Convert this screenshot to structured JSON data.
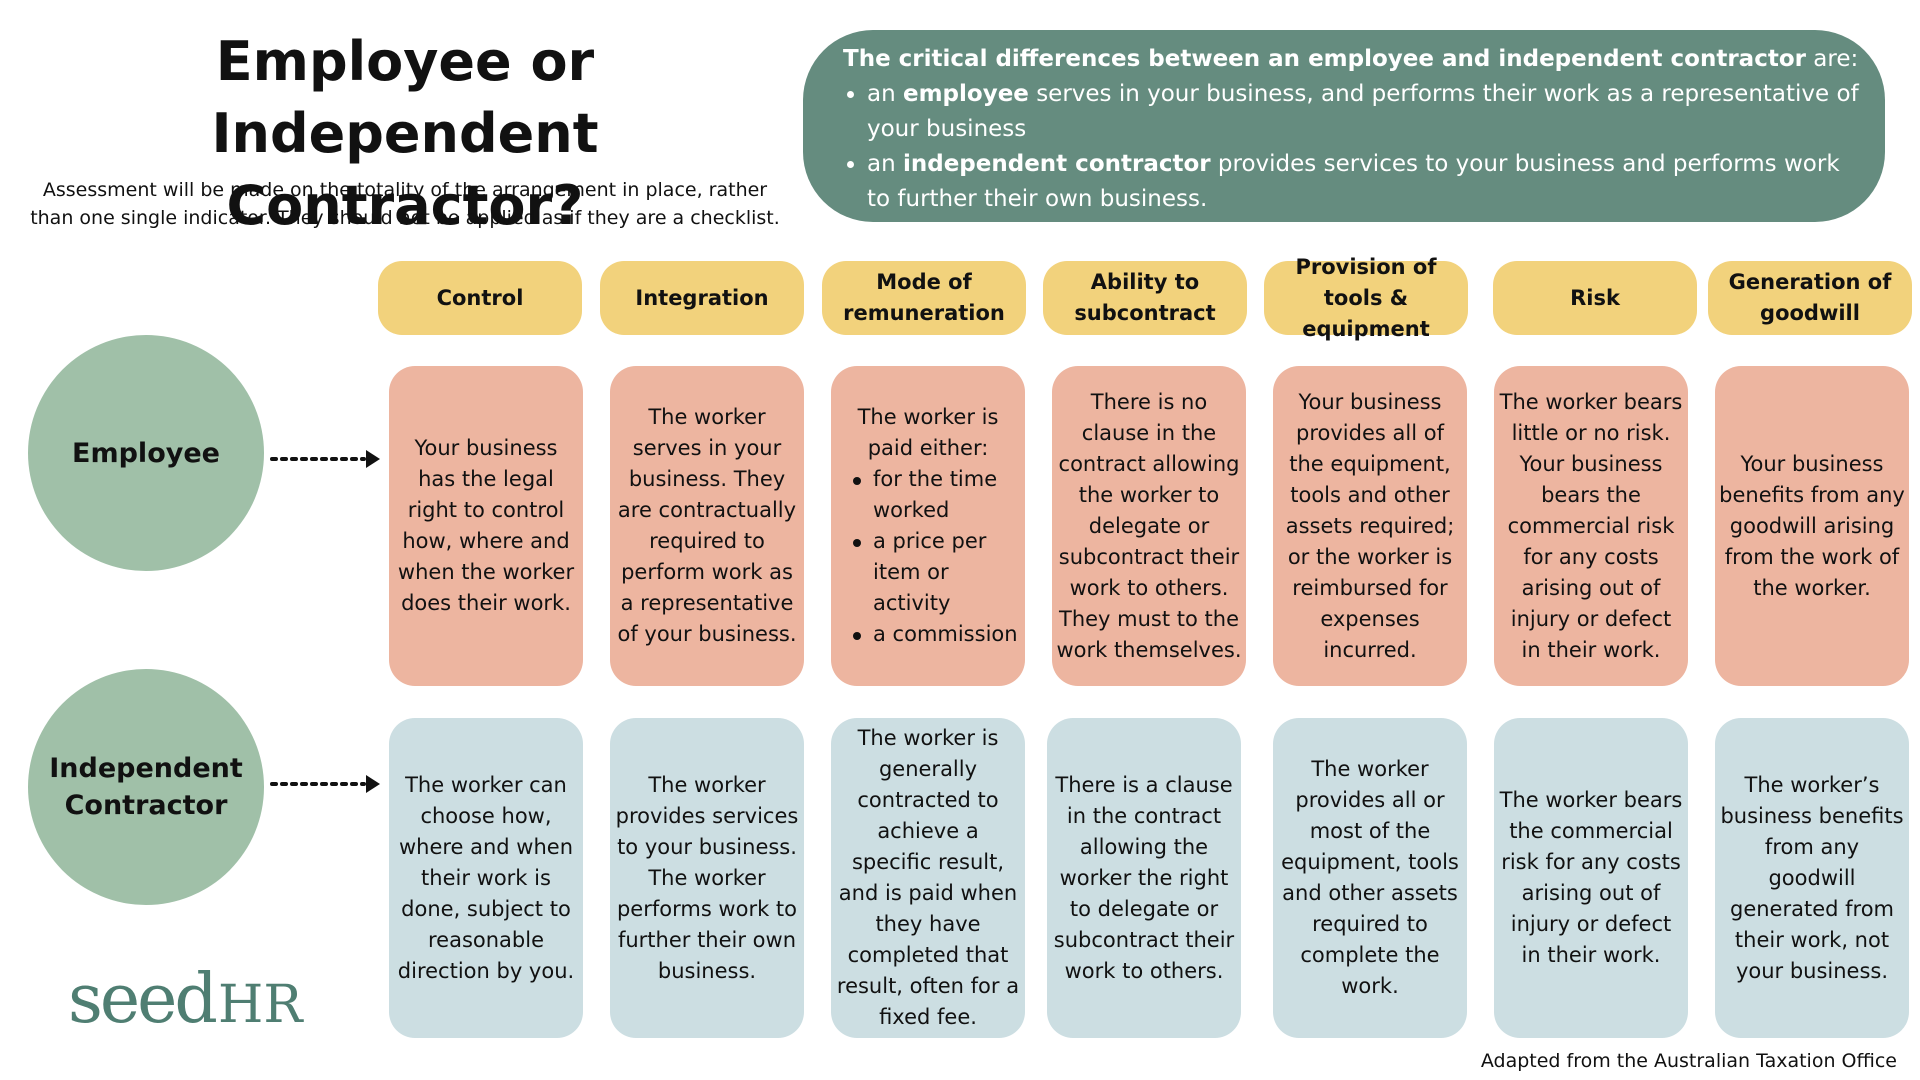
{
  "title_line1": "Employee or Independent",
  "title_line2": "Contractor?",
  "subtitle_line1": "Assessment will be made on the totality of the arrangement in place, rather",
  "subtitle_line2": "than one single indicator. They should not be applied as if they are a checklist.",
  "differences": {
    "lead_bold": "The critical differences between an employee and independent contractor",
    "lead_rest": " are:",
    "items": [
      {
        "pre": "an ",
        "bold": "employee",
        "post": " serves in your business, and performs their work as a representative of your business"
      },
      {
        "pre": "an ",
        "bold": "independent contractor",
        "post": " provides services to your business and performs work to further their own business."
      }
    ]
  },
  "headers": [
    "Control",
    "Integration",
    "Mode of remuneration",
    "Ability to subcontract",
    "Provision of tools & equipment",
    "Risk",
    "Generation of goodwill"
  ],
  "rows": {
    "employee_label_line1": "Employee",
    "contractor_label_line1": "Independent",
    "contractor_label_line2": "Contractor"
  },
  "employee_cells": [
    "Your business has the legal right to control how, where and when the worker does their work.",
    "The worker serves in your business. They are contractually required to perform work as a representative of your business.",
    "",
    "There is no clause in the contract allowing the worker to delegate or subcontract their work to others. They must to the work themselves.",
    "Your business provides all of the equipment, tools and other assets required; or the worker is reimbursed for expenses incurred.",
    "The worker bears little or no risk. Your business bears the commercial risk for any costs arising out of injury or defect in their work.",
    "Your business benefits from any goodwill arising from the work of the worker."
  ],
  "employee_mode": {
    "intro": "The worker is paid either:",
    "bullets": [
      "for the time worked",
      "a price per item or activity",
      "a commission"
    ]
  },
  "contractor_cells": [
    "The worker can choose how, where and when their work is done, subject to reasonable direction by you.",
    "The worker provides services to your business. The worker performs work to further their own business.",
    "The worker is generally contracted to achieve a specific result, and is paid when they have completed that result, often for a fixed fee.",
    "There is a clause in the contract allowing the worker the right to delegate or subcontract their work to others.",
    "The worker provides all or most of the equipment, tools and other assets required to complete the work.",
    "The worker bears the commercial risk for any costs arising out of injury or defect in their work.",
    "The worker’s business benefits from any goodwill generated from their work, not your business."
  ],
  "logo": {
    "text": "seed HR",
    "color": "#4f7e72"
  },
  "credit": "Adapted from the Australian Taxation Office",
  "colors": {
    "box": "#658c7f",
    "header": "#f2d27c",
    "employee_cell": "#edb5a0",
    "contractor_cell": "#ccdee2",
    "circle": "#a0c0a8"
  }
}
